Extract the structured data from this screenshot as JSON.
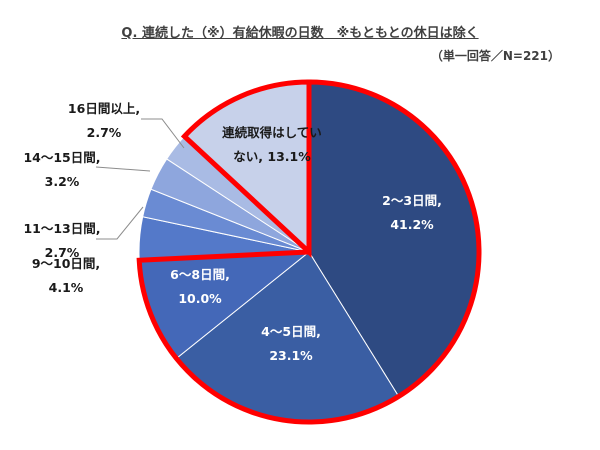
{
  "title": "Q. 連続した（※）有給休暇の日数　※もともとの休日は除く",
  "subtitle": "（単一回答／N=221）",
  "colors": {
    "highlight": "#ff0000",
    "leader": "#8c8c8c"
  },
  "chart_data": {
    "type": "pie",
    "categories": [
      "2〜3日間",
      "4〜5日間",
      "6〜8日間",
      "9〜10日間",
      "11〜13日間",
      "14〜15日間",
      "16日間以上",
      "連続取得はしていない"
    ],
    "values": [
      41.2,
      23.1,
      10.0,
      4.1,
      2.7,
      3.2,
      2.7,
      13.1
    ],
    "colors": [
      "#2e4a82",
      "#3a5ea3",
      "#4468b8",
      "#5479c9",
      "#6a8bd3",
      "#8ea6dd",
      "#a9bbe4",
      "#c7d1ea"
    ],
    "labels": [
      [
        "2〜3日間,",
        "41.2%"
      ],
      [
        "4〜5日間,",
        "23.1%"
      ],
      [
        "6〜8日間,",
        "10.0%"
      ],
      [
        "9〜10日間,",
        "4.1%"
      ],
      [
        "11〜13日間,",
        "2.7%"
      ],
      [
        "14〜15日間,",
        "3.2%"
      ],
      [
        "16日間以上,",
        "2.7%"
      ],
      [
        "連続取得はしてい",
        "ない, 13.1%"
      ]
    ],
    "highlighted_groups": [
      [
        0,
        1,
        2
      ],
      [
        7
      ]
    ],
    "legend": "none"
  }
}
